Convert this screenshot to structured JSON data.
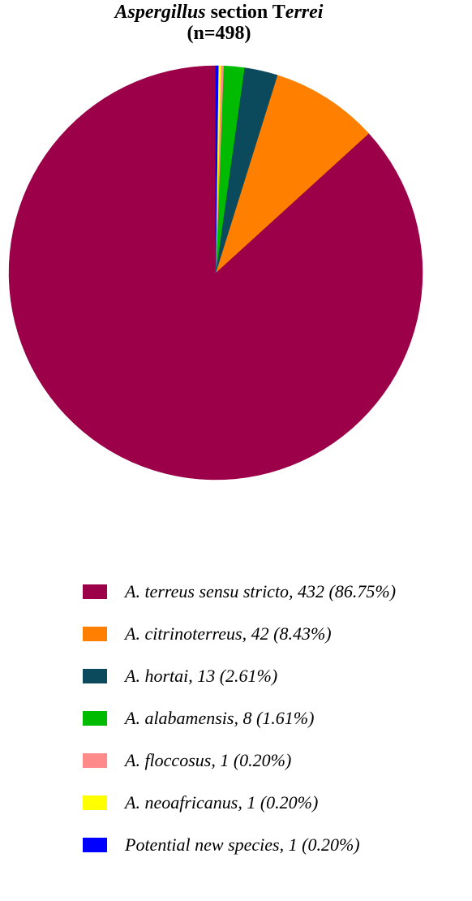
{
  "title": {
    "genus": "Aspergillus",
    "section_word": "section",
    "section_name": "Terrei",
    "n_line": "(n=498)"
  },
  "legend": [
    {
      "label": "A. terreus sensu stricto, 432 (86.75%)",
      "color": "#9B0048"
    },
    {
      "label": "A. citrinoterreus, 42 (8.43%)",
      "color": "#FF7F00"
    },
    {
      "label": "A. hortai, 13 (2.61%)",
      "color": "#0B4A5C"
    },
    {
      "label": "A. alabamensis, 8 (1.61%)",
      "color": "#00BB00"
    },
    {
      "label": "A. floccosus, 1 (0.20%)",
      "color": "#FF8A8A"
    },
    {
      "label": "A. neoafricanus, 1 (0.20%)",
      "color": "#FFFF00"
    },
    {
      "label": "Potential new species, 1 (0.20%)",
      "color": "#0000FF"
    }
  ],
  "chart_data": {
    "type": "pie",
    "title": "Aspergillus section Terrei (n=498)",
    "total": 498,
    "start": "12 o'clock",
    "direction": "counter-clockwise",
    "slices": [
      {
        "label": "A. terreus sensu stricto",
        "value": 432,
        "percent": 86.75,
        "color": "#9B0048"
      },
      {
        "label": "A. citrinoterreus",
        "value": 42,
        "percent": 8.43,
        "color": "#FF7F00"
      },
      {
        "label": "A. hortai",
        "value": 13,
        "percent": 2.61,
        "color": "#0B4A5C"
      },
      {
        "label": "A. alabamensis",
        "value": 8,
        "percent": 1.61,
        "color": "#00BB00"
      },
      {
        "label": "A. floccosus",
        "value": 1,
        "percent": 0.2,
        "color": "#FF8A8A"
      },
      {
        "label": "A. neoafricanus",
        "value": 1,
        "percent": 0.2,
        "color": "#FFFF00"
      },
      {
        "label": "Potential new species",
        "value": 1,
        "percent": 0.2,
        "color": "#0000FF"
      }
    ],
    "legend_position": "bottom"
  }
}
